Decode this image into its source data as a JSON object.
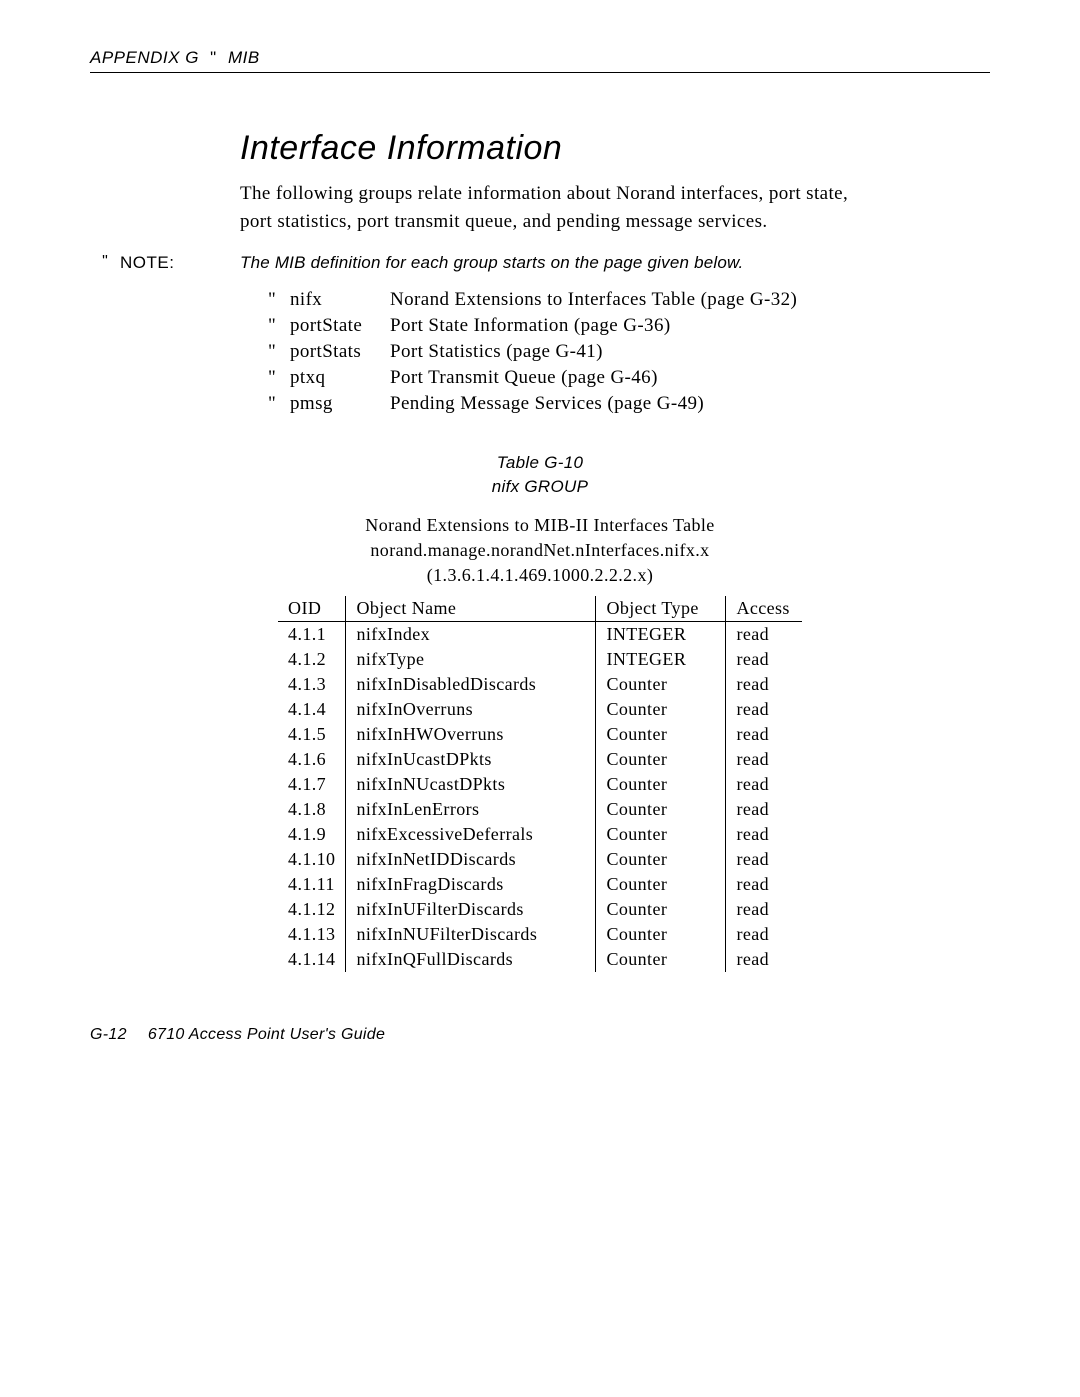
{
  "header": {
    "left": "APPENDIX G",
    "bullet": "\"",
    "right": "MIB"
  },
  "title": "Interface Information",
  "intro": "The following groups relate information about Norand interfaces, port state, port statistics, port transmit queue, and pending message services.",
  "note": {
    "marker": "\"",
    "label": "NOTE:",
    "text": "The MIB definition for each group starts on the page given below."
  },
  "definitions": [
    {
      "term": "nifx",
      "desc": "Norand Extensions to Interfaces Table (page G-32)"
    },
    {
      "term": "portState",
      "desc": "Port State Information (page G-36)"
    },
    {
      "term": "portStats",
      "desc": "Port Statistics (page G-41)"
    },
    {
      "term": "ptxq",
      "desc": "Port Transmit Queue (page G-46)"
    },
    {
      "term": "pmsg",
      "desc": "Pending Message Services (page G-49)"
    }
  ],
  "table": {
    "caption_line1": "Table G-10",
    "caption_line2": "nifx GROUP",
    "sub1": "Norand Extensions to MIB-II Interfaces Table",
    "sub2": "norand.manage.norandNet.nInterfaces.nifx.x",
    "sub3": "(1.3.6.1.4.1.469.1000.2.2.2.x)",
    "columns": [
      "OID",
      "Object Name",
      "Object Type",
      "Access"
    ],
    "col_widths": [
      "66px",
      "250px",
      "130px",
      "76px"
    ],
    "rows": [
      [
        "4.1.1",
        "nifxIndex",
        "INTEGER",
        "read"
      ],
      [
        "4.1.2",
        "nifxType",
        "INTEGER",
        "read"
      ],
      [
        "4.1.3",
        "nifxInDisabledDiscards",
        "Counter",
        "read"
      ],
      [
        "4.1.4",
        "nifxInOverruns",
        "Counter",
        "read"
      ],
      [
        "4.1.5",
        "nifxInHWOverruns",
        "Counter",
        "read"
      ],
      [
        "4.1.6",
        "nifxInUcastDPkts",
        "Counter",
        "read"
      ],
      [
        "4.1.7",
        "nifxInNUcastDPkts",
        "Counter",
        "read"
      ],
      [
        "4.1.8",
        "nifxInLenErrors",
        "Counter",
        "read"
      ],
      [
        "4.1.9",
        "nifxExcessiveDeferrals",
        "Counter",
        "read"
      ],
      [
        "4.1.10",
        "nifxInNetIDDiscards",
        "Counter",
        "read"
      ],
      [
        "4.1.11",
        "nifxInFragDiscards",
        "Counter",
        "read"
      ],
      [
        "4.1.12",
        "nifxInUFilterDiscards",
        "Counter",
        "read"
      ],
      [
        "4.1.13",
        "nifxInNUFilterDiscards",
        "Counter",
        "read"
      ],
      [
        "4.1.14",
        "nifxInQFullDiscards",
        "Counter",
        "read"
      ]
    ]
  },
  "footer": "G-12  6710 Access Point User's Guide",
  "style": {
    "background_color": "#ffffff",
    "text_color": "#000000",
    "rule_color": "#000000",
    "title_fontsize": 34,
    "body_fontsize": 19,
    "note_fontsize": 17,
    "footer_fontsize": 16
  }
}
